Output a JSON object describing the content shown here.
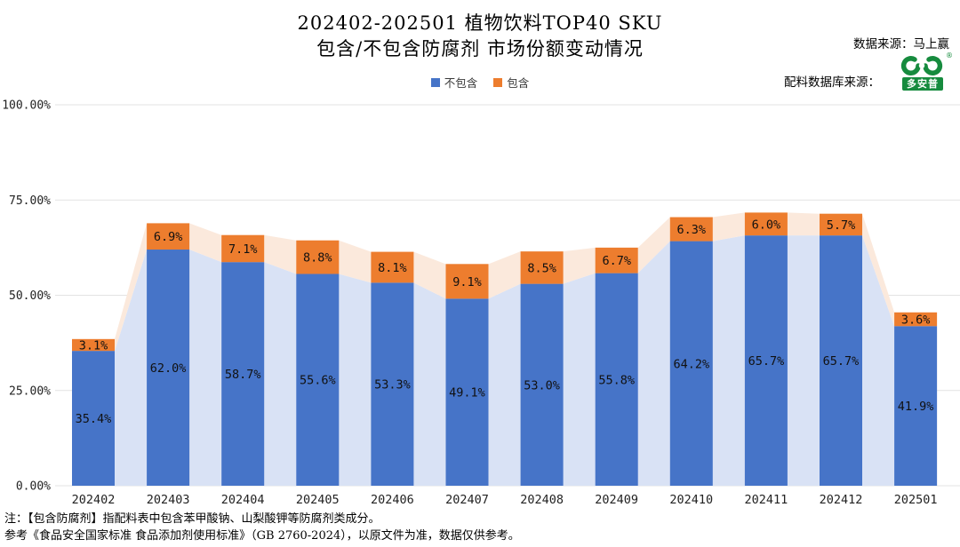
{
  "title": {
    "line1": "202402-202501 植物饮料TOP40 SKU",
    "line2": "包含/不包含防腐剂 市场份额变动情况"
  },
  "sources": {
    "data_source": "数据来源：马上赢",
    "ingredient_source_label": "配料数据库来源：",
    "logo_text": "多安普",
    "logo_registered": "®"
  },
  "notes": {
    "line1": "注：【包含防腐剂】指配料表中包含苯甲酸钠、山梨酸钾等防腐剂类成分。",
    "line2": "参考《食品安全国家标准 食品添加剂使用标准》（GB 2760-2024），以原文件为准，数据仅供参考。"
  },
  "colors": {
    "bar_blue": "#4674C8",
    "bar_orange": "#ED7D2E",
    "area_blue": "#D9E2F5",
    "area_peach": "#FBE9DC",
    "grid": "#E3E3E3",
    "logo_green": "#168B3E",
    "label_text": "#111111"
  },
  "chart_data": {
    "type": "bar",
    "stacked": true,
    "grid": true,
    "legend_position": "top",
    "ylim": [
      0,
      100
    ],
    "categories": [
      "202402",
      "202403",
      "202404",
      "202405",
      "202406",
      "202407",
      "202408",
      "202409",
      "202410",
      "202411",
      "202412",
      "202501"
    ],
    "series": [
      {
        "name": "不包含",
        "color": "#4674C8",
        "area_color": "#D9E2F5",
        "values": [
          35.4,
          62.0,
          58.7,
          55.6,
          53.3,
          49.1,
          53.0,
          55.8,
          64.2,
          65.7,
          65.7,
          41.9
        ]
      },
      {
        "name": "包含",
        "color": "#ED7D2E",
        "area_color": "#FBE9DC",
        "values": [
          3.1,
          6.9,
          7.1,
          8.8,
          8.1,
          9.1,
          8.5,
          6.7,
          6.3,
          6.0,
          5.7,
          3.6
        ]
      }
    ],
    "y_ticks": [
      {
        "value": 0,
        "label": "0.00%"
      },
      {
        "value": 25,
        "label": "25.00%"
      },
      {
        "value": 50,
        "label": "50.00%"
      },
      {
        "value": 75,
        "label": "75.00%"
      },
      {
        "value": 100,
        "label": "100.00%"
      }
    ]
  }
}
